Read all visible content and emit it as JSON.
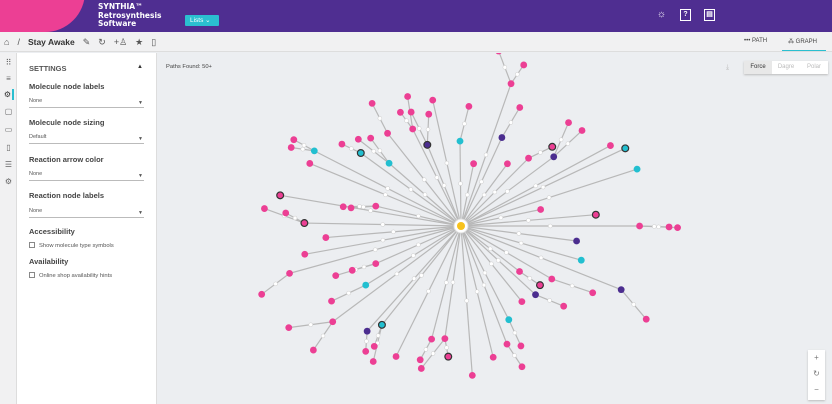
{
  "header": {
    "brand_line1": "SYNTHIA™",
    "brand_line2": "Retrosynthesis",
    "brand_line3": "Software",
    "lists_label": "Lists ⌄",
    "icons": [
      "lightbulb-icon",
      "help-icon",
      "clipboard-icon"
    ]
  },
  "toolbar": {
    "title": "Stay Awake",
    "icons": [
      "home-icon",
      "edit-icon",
      "refresh-icon",
      "add-user-icon",
      "star-icon",
      "trash-icon"
    ],
    "path_tab": "PATH",
    "graph_tab": "GRAPH",
    "active_tab": "GRAPH"
  },
  "rail": {
    "icons": [
      "drag-icon",
      "filter-icon",
      "settings-graph-icon",
      "clipboard-icon",
      "monitor-icon",
      "document-icon",
      "list-icon",
      "gear-icon"
    ]
  },
  "settings": {
    "title": "SETTINGS",
    "molecule_labels": {
      "label": "Molecule node labels",
      "value": "None"
    },
    "molecule_sizing": {
      "label": "Molecule node sizing",
      "value": "Default"
    },
    "arrow_color": {
      "label": "Reaction arrow color",
      "value": "None"
    },
    "reaction_labels": {
      "label": "Reaction node labels",
      "value": "None"
    },
    "accessibility": {
      "label": "Accessibility",
      "option": "Show molecule type symbols",
      "checked": false
    },
    "availability": {
      "label": "Availability",
      "option": "Online shop availability hints",
      "checked": false
    }
  },
  "graph": {
    "paths_found": "Paths Found: 50+",
    "layouts": [
      "Force",
      "Dagre",
      "Polar"
    ],
    "active_layout": "Force",
    "colors": {
      "pink": "#ec3f94",
      "purple": "#4b2d8f",
      "cyan": "#22bfd0",
      "target": "#f7c21d",
      "edge": "#b8b8b8",
      "reaction": "#ffffff"
    }
  },
  "zoom_controls": {
    "in": "+",
    "reset": "↻",
    "out": "−"
  }
}
